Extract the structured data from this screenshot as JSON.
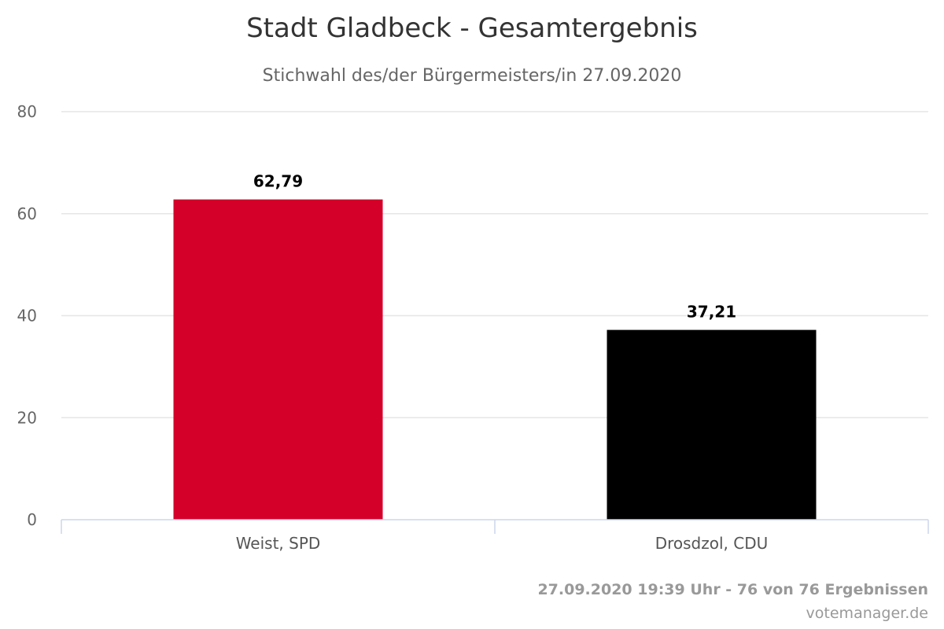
{
  "chart_data": {
    "type": "bar",
    "title": "Stadt Gladbeck - Gesamtergebnis",
    "subtitle": "Stichwahl des/der Bürgermeisters/in 27.09.2020",
    "categories": [
      "Weist, SPD",
      "Drosdzol, CDU"
    ],
    "values": [
      62.79,
      37.21
    ],
    "value_labels": [
      "62,79",
      "37,21"
    ],
    "colors": [
      "#d5002a",
      "#000000"
    ],
    "ylim": [
      0,
      80
    ],
    "yticks": [
      0,
      20,
      40,
      60,
      80
    ],
    "ytick_labels": [
      "0",
      "20",
      "40",
      "60",
      "80"
    ],
    "grid": true,
    "legend": "none"
  },
  "credits": {
    "status": "27.09.2020 19:39 Uhr - 76 von 76 Ergebnissen",
    "source": "votemanager.de"
  }
}
